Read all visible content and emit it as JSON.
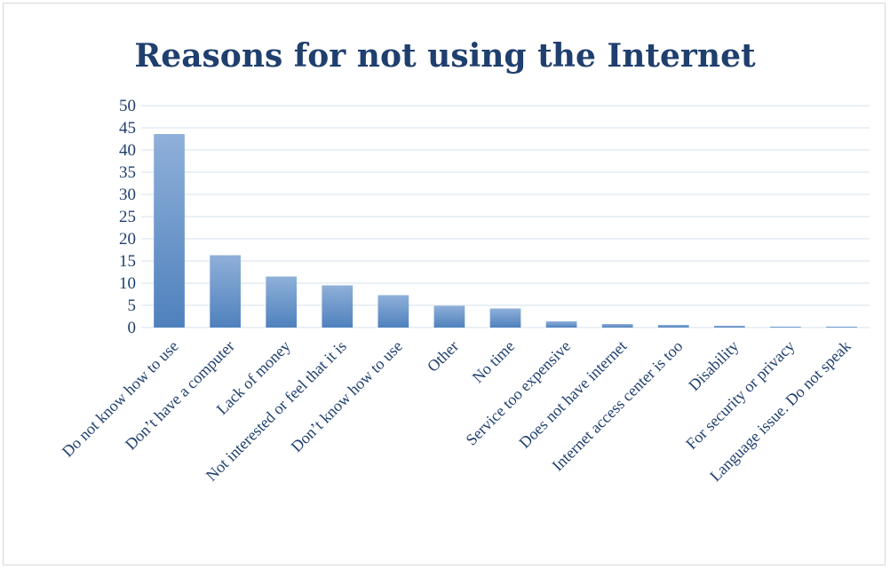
{
  "chart_data": {
    "type": "bar",
    "title": "Reasons for not using the Internet",
    "categories": [
      "Do not know how to use",
      "Don’t have a computer",
      "Lack of money",
      "Not interested or feel that it is",
      "Don’t know how to use",
      "Other",
      "No time",
      "Service too expensive",
      "Does not have internet",
      "Internet access center is too",
      "Disability",
      "For security or privacy",
      "Language issue. Do not speak"
    ],
    "values": [
      43.6,
      16.3,
      11.5,
      9.5,
      7.3,
      4.9,
      4.3,
      1.4,
      0.8,
      0.6,
      0.4,
      0.2,
      0.2
    ],
    "ylim": [
      0,
      50
    ],
    "yticks": [
      0,
      5,
      10,
      15,
      20,
      25,
      30,
      35,
      40,
      45,
      50
    ],
    "grid": true,
    "legend": "none",
    "colors": {
      "bar_top": "#8fb0d9",
      "bar_bottom": "#4f81bd",
      "grid": "#d5e0ee",
      "text": "#1f3f6e"
    }
  }
}
